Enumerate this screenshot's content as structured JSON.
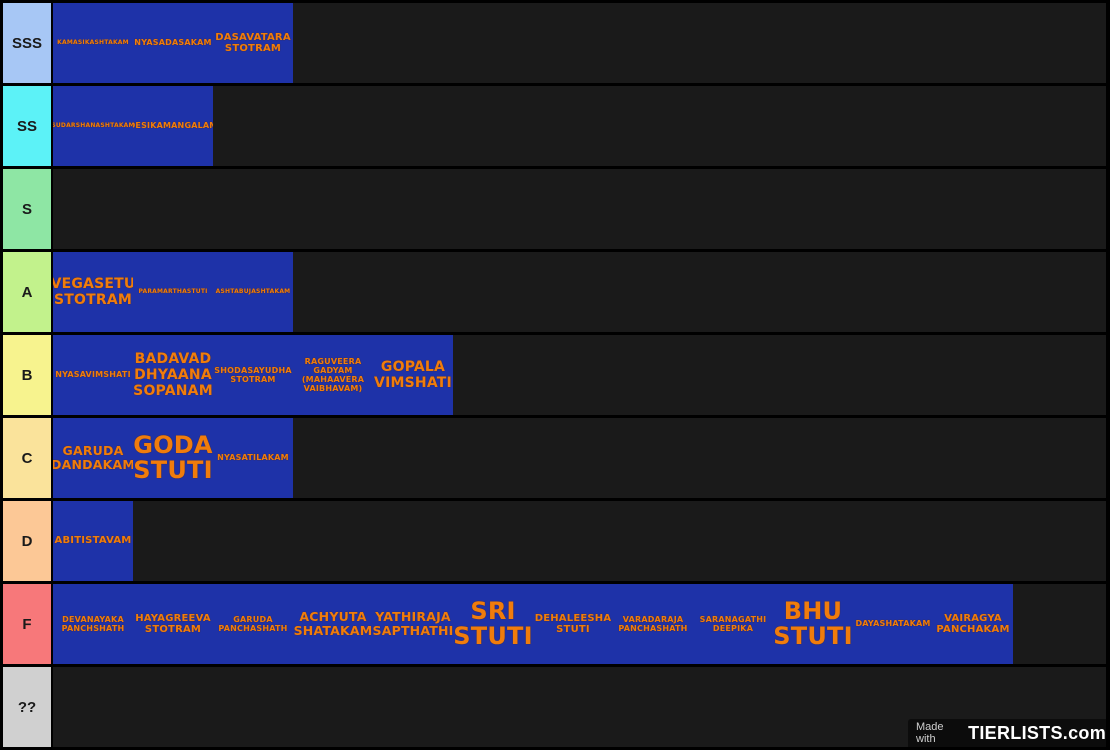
{
  "tiers": [
    {
      "label": "SSS",
      "color": "#a7c7f5",
      "items": [
        {
          "text": "KAMASIKASHTAKAM",
          "size": "fs-xs"
        },
        {
          "text": "NYASADASAKAM",
          "size": "fs-s"
        },
        {
          "text": "DASAVATARA STOTRAM",
          "size": "fs-m"
        }
      ]
    },
    {
      "label": "SS",
      "color": "#5cf2f7",
      "items": [
        {
          "text": "SUDARSHANASHTAKAM",
          "size": "fs-xs"
        },
        {
          "text": "DESIKAMANGALAM",
          "size": "fs-s"
        }
      ]
    },
    {
      "label": "S",
      "color": "#8ee6a4",
      "items": []
    },
    {
      "label": "A",
      "color": "#c2f28c",
      "items": [
        {
          "text": "VEGASETU STOTRAM",
          "size": "fs-xl"
        },
        {
          "text": "PARAMARTHASTUTI",
          "size": "fs-xs"
        },
        {
          "text": "ASHTABUJASHTAKAM",
          "size": "fs-xs"
        }
      ]
    },
    {
      "label": "B",
      "color": "#f7f38e",
      "items": [
        {
          "text": "NYASAVIMSHATI",
          "size": "fs-s"
        },
        {
          "text": "BADAVAD DHYAANA SOPANAM",
          "size": "fs-xl"
        },
        {
          "text": "SHODASAYUDHA STOTRAM",
          "size": "fs-s"
        },
        {
          "text": "RAGUVEERA GADYAM (MAHAAVERA VAIBHAVAM)",
          "size": "fs-s"
        },
        {
          "text": "GOPALA VIMSHATI",
          "size": "fs-xl"
        }
      ]
    },
    {
      "label": "C",
      "color": "#fae39b",
      "items": [
        {
          "text": "GARUDA DANDAKAM",
          "size": "fs-l"
        },
        {
          "text": "GODA STUTI",
          "size": "fs-xxl"
        },
        {
          "text": "NYASATILAKAM",
          "size": "fs-s"
        }
      ]
    },
    {
      "label": "D",
      "color": "#fcc896",
      "items": [
        {
          "text": "ABITISTAVAM",
          "size": "fs-m"
        }
      ]
    },
    {
      "label": "F",
      "color": "#f7787a",
      "items": [
        {
          "text": "DEVANAYAKA PANCHSHATH",
          "size": "fs-s"
        },
        {
          "text": "HAYAGREEVA STOTRAM",
          "size": "fs-m"
        },
        {
          "text": "GARUDA PANCHASHATH",
          "size": "fs-s"
        },
        {
          "text": "ACHYUTA SHATAKAM",
          "size": "fs-l"
        },
        {
          "text": "YATHIRAJA SAPTHATHI",
          "size": "fs-l"
        },
        {
          "text": "SRI STUTI",
          "size": "fs-xxl"
        },
        {
          "text": "DEHALEESHA STUTI",
          "size": "fs-m"
        },
        {
          "text": "VARADARAJA PANCHASHATH",
          "size": "fs-s"
        },
        {
          "text": "SARANAGATHI DEEPIKA",
          "size": "fs-s"
        },
        {
          "text": "BHU STUTI",
          "size": "fs-xxl"
        },
        {
          "text": "DAYASHATAKAM",
          "size": "fs-s"
        },
        {
          "text": "VAIRAGYA PANCHAKAM",
          "size": "fs-m"
        }
      ]
    },
    {
      "label": "??",
      "color": "#d0d0d0",
      "items": []
    }
  ],
  "watermark": {
    "made_with": "Made with",
    "brand": "TIERLISTS.com"
  }
}
